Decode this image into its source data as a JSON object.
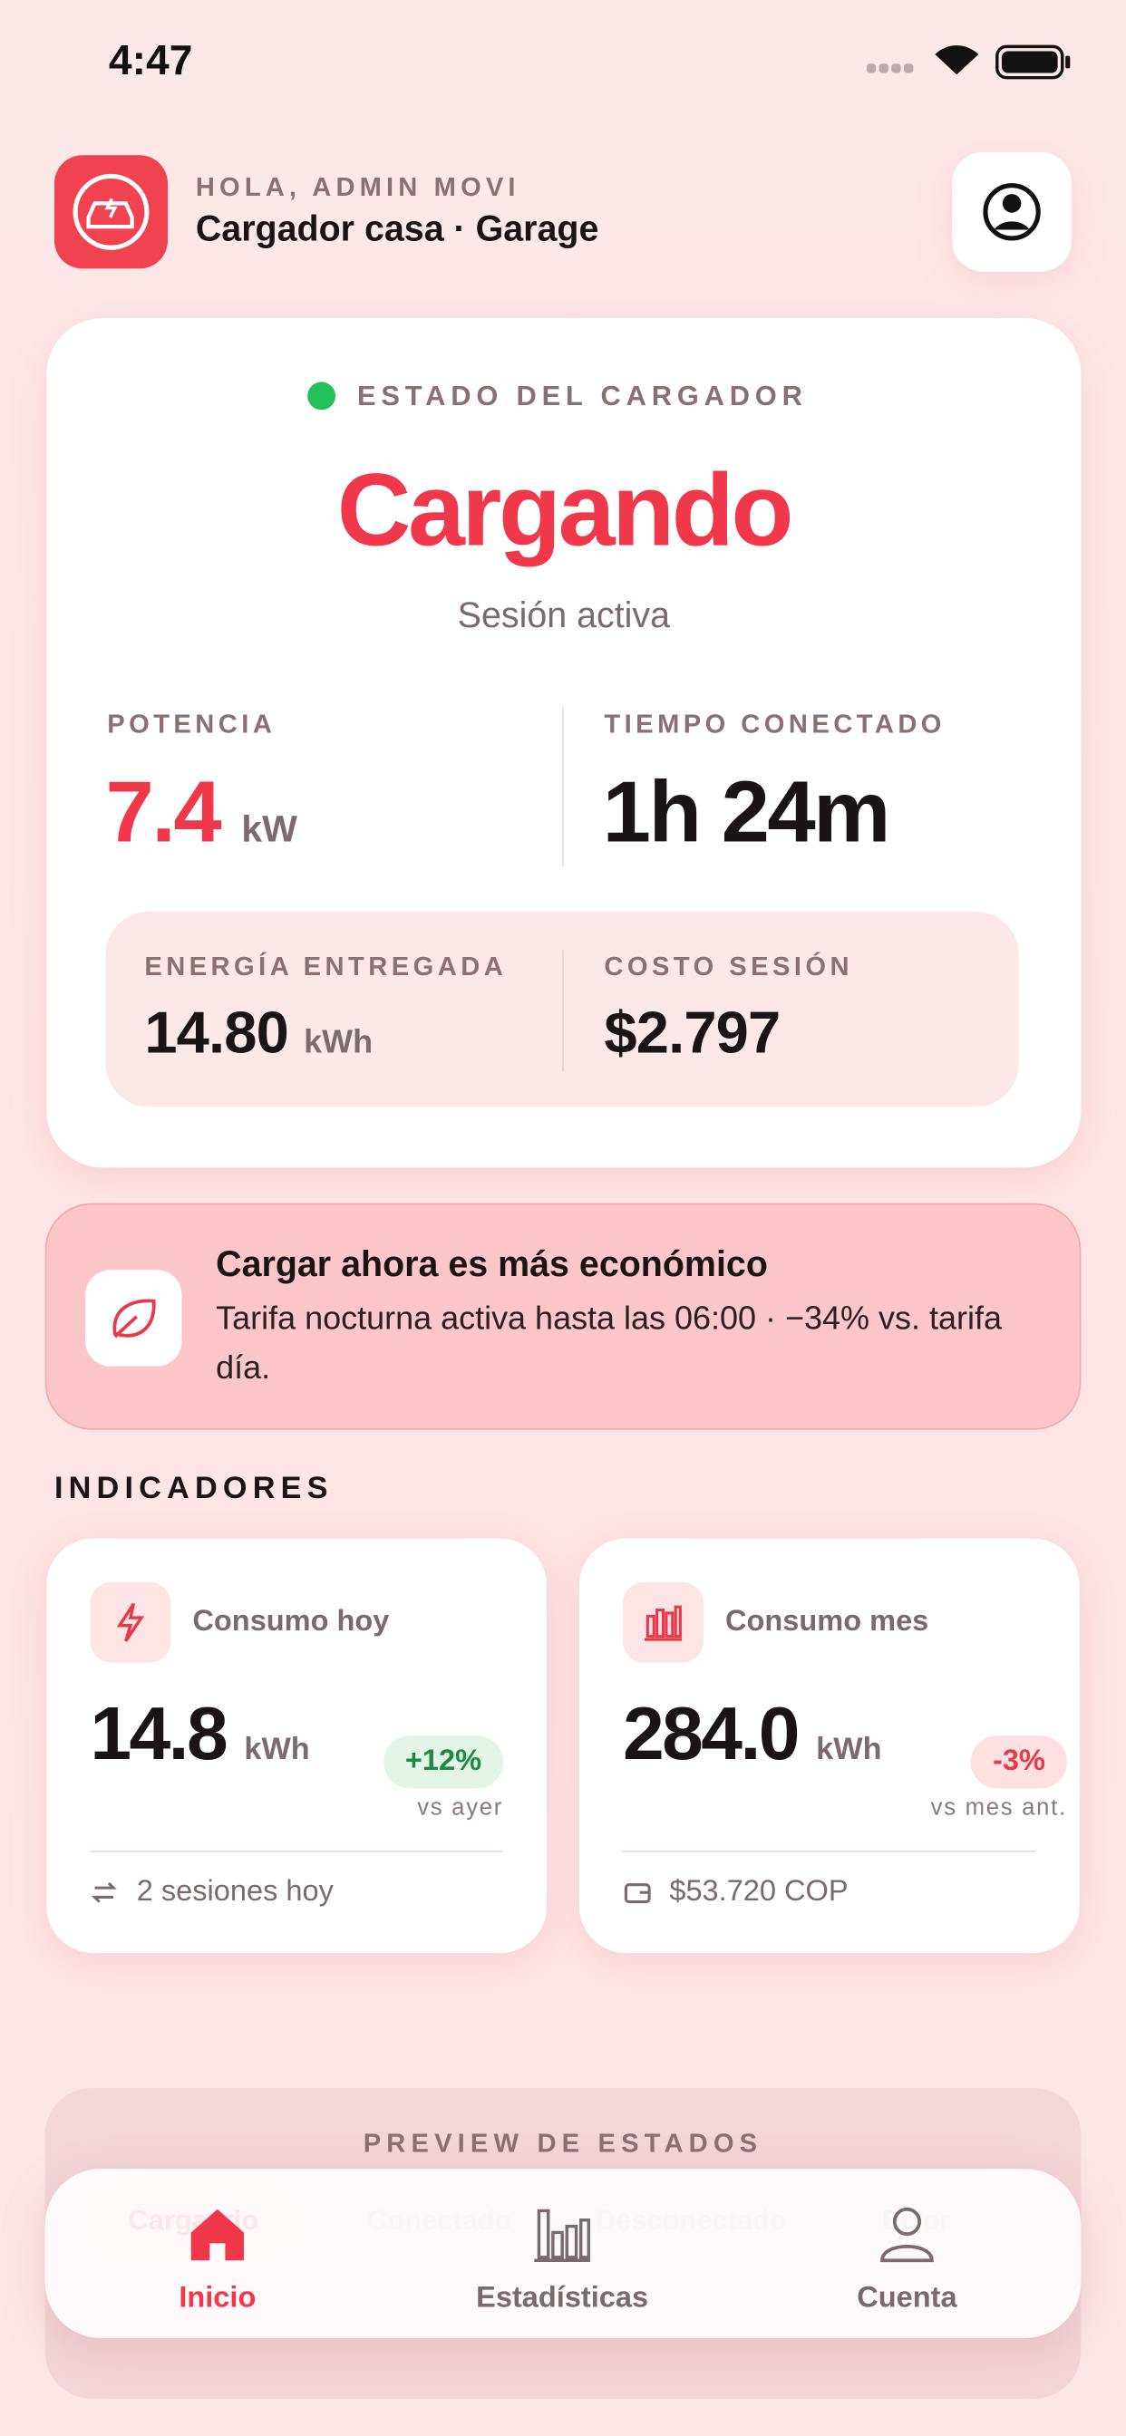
{
  "status_bar": {
    "time": "4:47"
  },
  "header": {
    "greeting": "HOLA, ADMIN MOVI",
    "title": "Cargador casa · Garage"
  },
  "status_card": {
    "label": "ESTADO DEL CARGADOR",
    "state": "Cargando",
    "subtitle": "Sesión activa",
    "metrics": [
      {
        "label": "POTENCIA",
        "value": "7.4",
        "unit": "kW"
      },
      {
        "label": "TIEMPO CONECTADO",
        "value": "1h 24m"
      }
    ],
    "details": [
      {
        "label": "ENERGÍA ENTREGADA",
        "value": "14.80",
        "unit": "kWh"
      },
      {
        "label": "COSTO SESIÓN",
        "value": "$2.797"
      }
    ]
  },
  "banner": {
    "title": "Cargar ahora es más económico",
    "text": "Tarifa nocturna activa hasta las 06:00 · −34% vs. tarifa día."
  },
  "indicators": {
    "heading": "INDICADORES",
    "cards": [
      {
        "title": "Consumo hoy",
        "value": "14.8",
        "unit": "kWh",
        "change": "+12%",
        "change_note": "vs ayer",
        "footer": "2 sesiones hoy"
      },
      {
        "title": "Consumo mes",
        "value": "284.0",
        "unit": "kWh",
        "change": "-3%",
        "change_note": "vs mes ant.",
        "footer": "$53.720 COP"
      }
    ]
  },
  "preview": {
    "heading": "PREVIEW DE ESTADOS",
    "chips": [
      "Cargando",
      "Conectado",
      "Desconectado",
      "Error"
    ]
  },
  "tab_bar": {
    "tabs": [
      "Inicio",
      "Estadísticas",
      "Cuenta"
    ]
  }
}
